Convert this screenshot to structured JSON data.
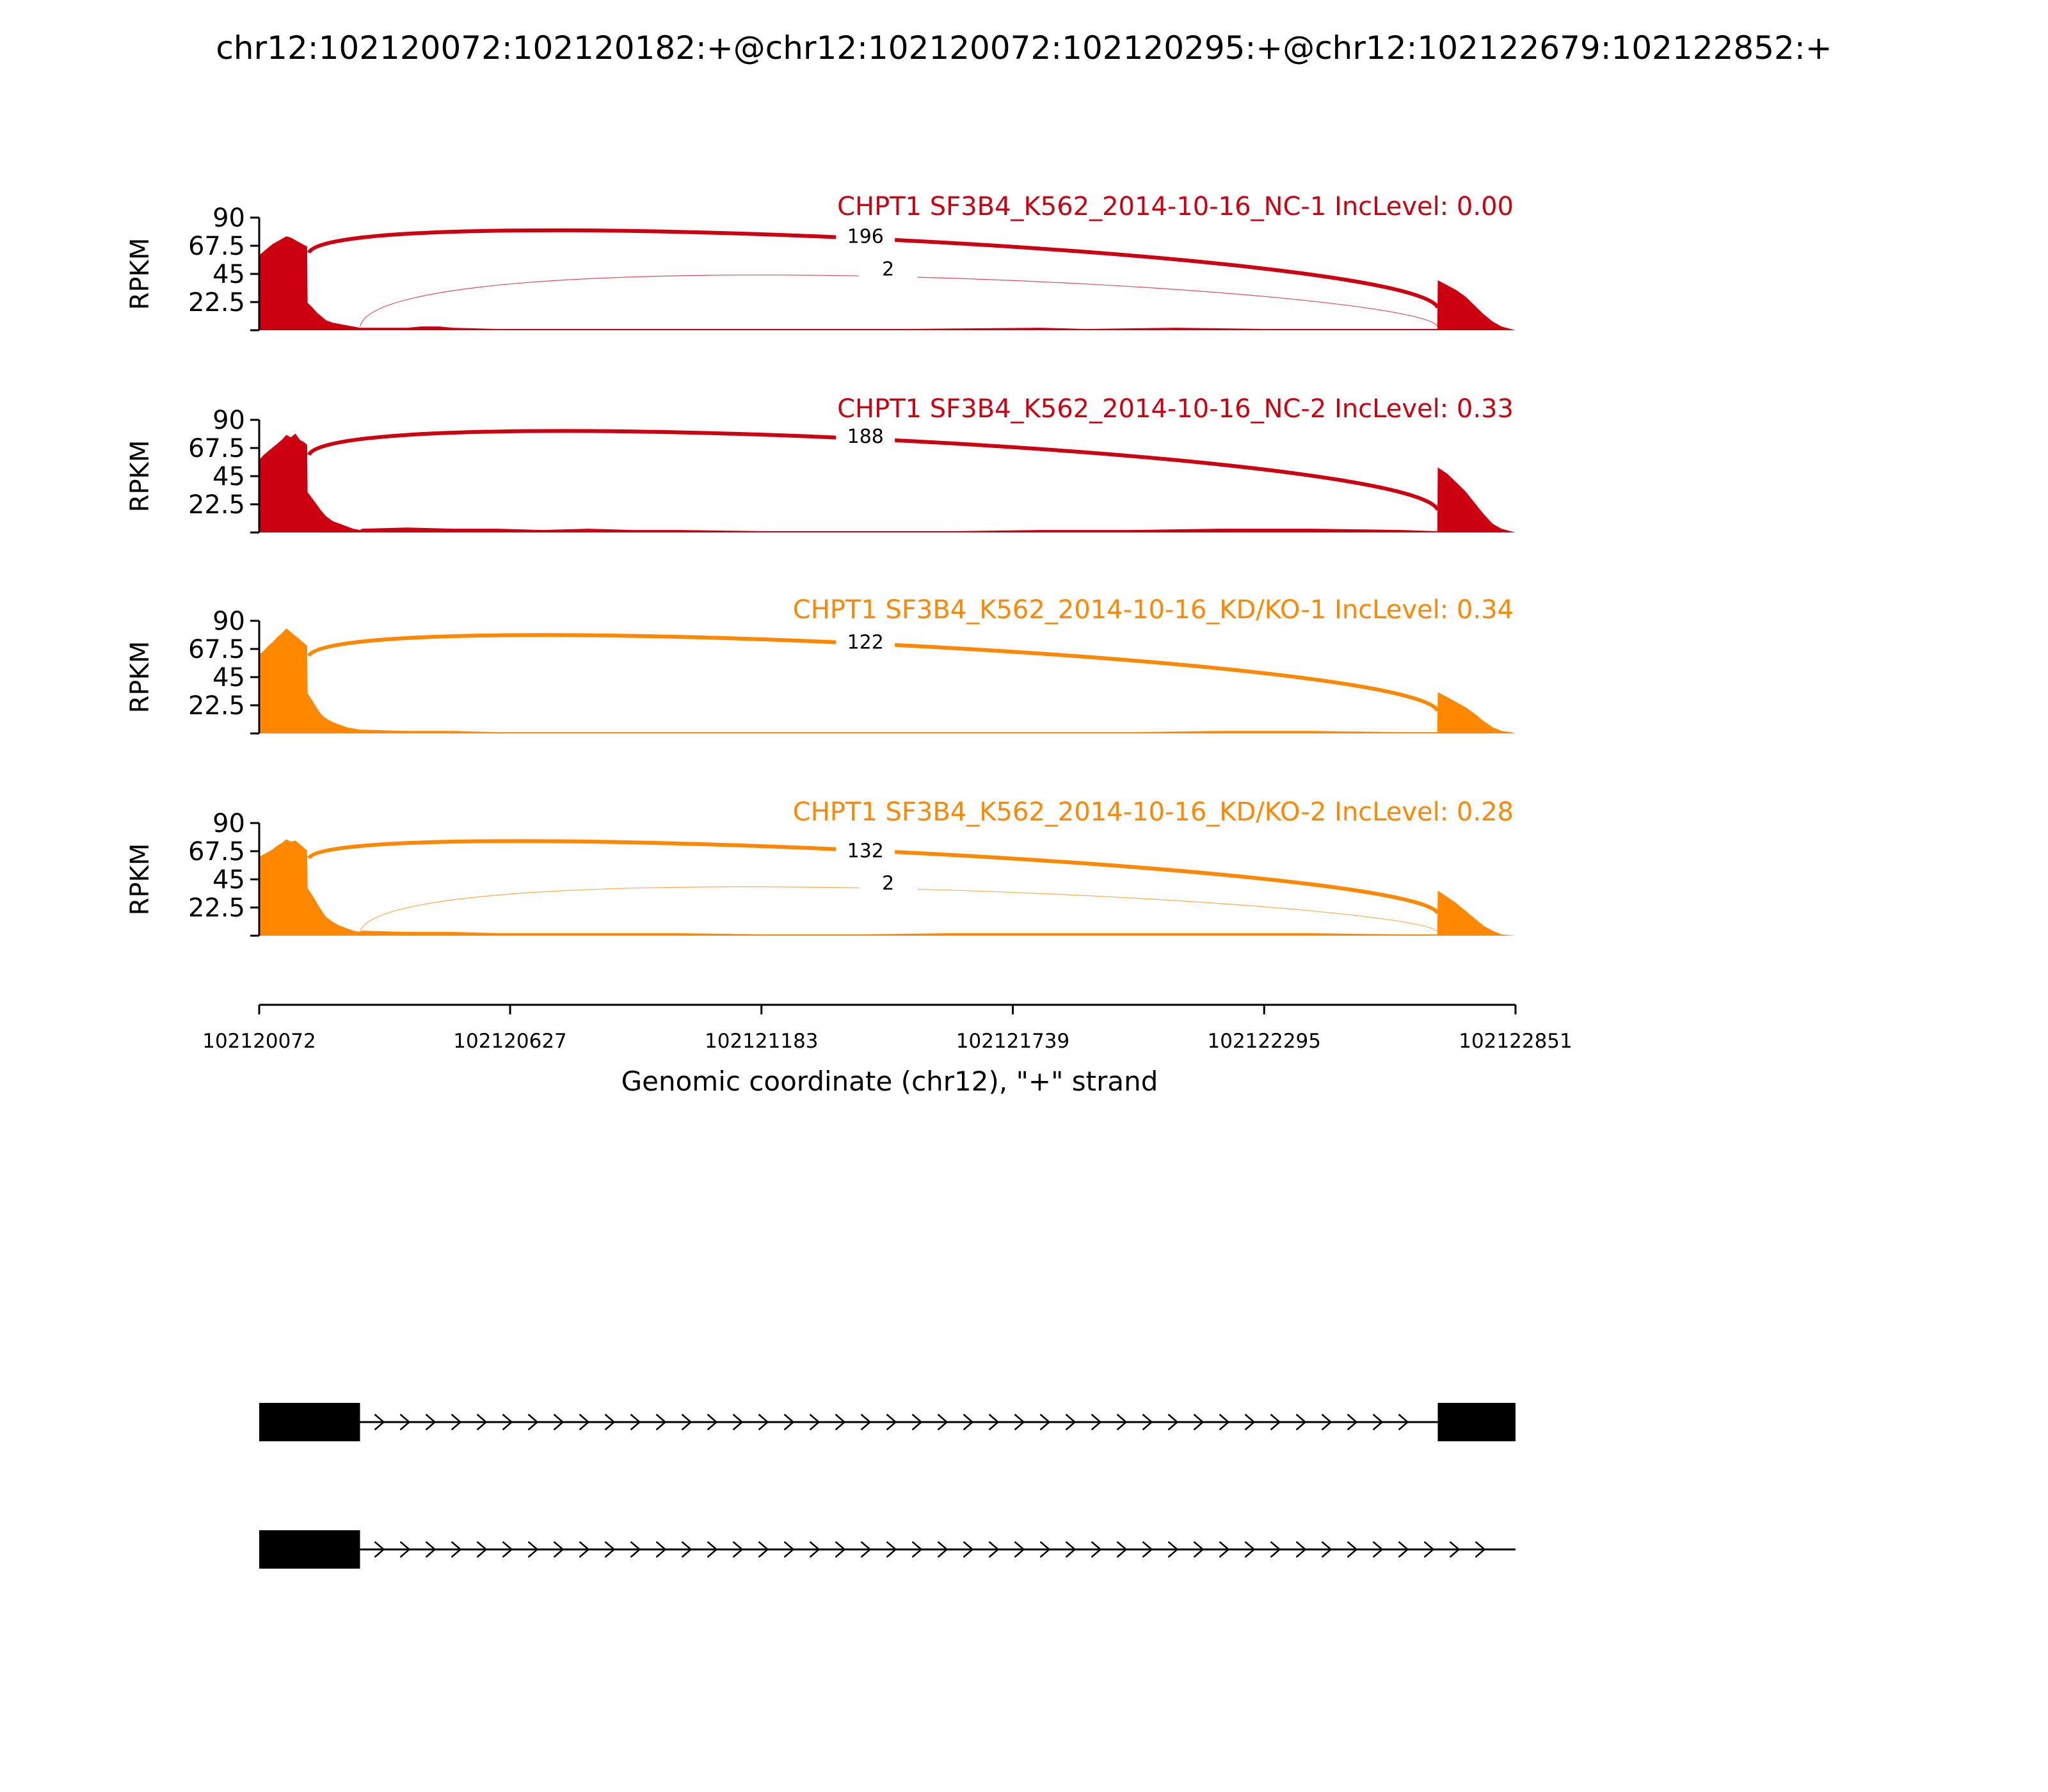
{
  "title": "chr12:102120072:102120182:+@chr12:102120072:102120295:+@chr12:102122679:102122852:+",
  "colors": {
    "nc": "#cc0011",
    "kd": "#ff8800",
    "structure": "#000000"
  },
  "chart_data": {
    "type": "area",
    "xlabel": "Genomic coordinate (chr12), \"+\" strand",
    "ylabel": "RPKM",
    "xlim": [
      102120072,
      102122851
    ],
    "ylim": [
      0,
      90
    ],
    "xticks": [
      "102120072",
      "102120627",
      "102121183",
      "102121739",
      "102122295",
      "102122851"
    ],
    "yticks": [
      "22.5",
      "45",
      "67.5",
      "90"
    ],
    "tracks": [
      {
        "name": "CHPT1 SF3B4_K562_2014-10-16_NC-1 IncLevel: 0.00",
        "group": "nc",
        "coverage": [
          [
            102120072,
            0
          ],
          [
            102120072,
            60
          ],
          [
            102120082,
            63
          ],
          [
            102120092,
            66
          ],
          [
            102120102,
            69
          ],
          [
            102120112,
            71
          ],
          [
            102120122,
            73
          ],
          [
            102120132,
            75
          ],
          [
            102120142,
            74
          ],
          [
            102120152,
            72
          ],
          [
            102120162,
            70
          ],
          [
            102120172,
            68
          ],
          [
            102120178,
            67
          ],
          [
            102120179,
            22
          ],
          [
            102120190,
            18
          ],
          [
            102120200,
            14
          ],
          [
            102120210,
            11
          ],
          [
            102120220,
            8
          ],
          [
            102120235,
            6
          ],
          [
            102120250,
            5
          ],
          [
            102120265,
            4
          ],
          [
            102120280,
            3
          ],
          [
            102120295,
            2
          ],
          [
            102120300,
            2
          ],
          [
            102120400,
            2
          ],
          [
            102120430,
            3
          ],
          [
            102120470,
            3
          ],
          [
            102120500,
            2
          ],
          [
            102120600,
            1
          ],
          [
            102120800,
            1
          ],
          [
            102121000,
            1
          ],
          [
            102121200,
            1
          ],
          [
            102121500,
            1
          ],
          [
            102121800,
            2
          ],
          [
            102121900,
            1
          ],
          [
            102122100,
            2
          ],
          [
            102122300,
            1
          ],
          [
            102122500,
            1
          ],
          [
            102122678,
            1
          ],
          [
            102122679,
            40
          ],
          [
            102122700,
            36
          ],
          [
            102122720,
            32
          ],
          [
            102122740,
            27
          ],
          [
            102122760,
            20
          ],
          [
            102122780,
            13
          ],
          [
            102122800,
            7
          ],
          [
            102122820,
            3
          ],
          [
            102122840,
            1
          ],
          [
            102122851,
            0
          ]
        ],
        "junctions": [
          {
            "from": 102120182,
            "to": 102122679,
            "count": "196",
            "height": 84,
            "weight": "major"
          },
          {
            "from": 102120295,
            "to": 102122679,
            "count": "2",
            "height": 56,
            "weight": "minor"
          }
        ]
      },
      {
        "name": "CHPT1 SF3B4_K562_2014-10-16_NC-2 IncLevel: 0.33",
        "group": "nc",
        "coverage": [
          [
            102120072,
            0
          ],
          [
            102120072,
            58
          ],
          [
            102120082,
            62
          ],
          [
            102120092,
            65
          ],
          [
            102120102,
            68
          ],
          [
            102120112,
            71
          ],
          [
            102120122,
            74
          ],
          [
            102120132,
            78
          ],
          [
            102120142,
            76
          ],
          [
            102120152,
            79
          ],
          [
            102120162,
            74
          ],
          [
            102120172,
            72
          ],
          [
            102120178,
            70
          ],
          [
            102120179,
            32
          ],
          [
            102120190,
            27
          ],
          [
            102120200,
            22
          ],
          [
            102120210,
            17
          ],
          [
            102120220,
            13
          ],
          [
            102120235,
            9
          ],
          [
            102120250,
            7
          ],
          [
            102120265,
            5
          ],
          [
            102120280,
            3
          ],
          [
            102120295,
            2
          ],
          [
            102120300,
            3
          ],
          [
            102120400,
            4
          ],
          [
            102120500,
            3
          ],
          [
            102120600,
            3
          ],
          [
            102120700,
            2
          ],
          [
            102120800,
            3
          ],
          [
            102120900,
            2
          ],
          [
            102121000,
            2
          ],
          [
            102121200,
            1
          ],
          [
            102121400,
            1
          ],
          [
            102121600,
            1
          ],
          [
            102121800,
            2
          ],
          [
            102122000,
            2
          ],
          [
            102122200,
            3
          ],
          [
            102122400,
            3
          ],
          [
            102122600,
            2
          ],
          [
            102122678,
            1
          ],
          [
            102122679,
            52
          ],
          [
            102122700,
            47
          ],
          [
            102122720,
            40
          ],
          [
            102122740,
            33
          ],
          [
            102122760,
            24
          ],
          [
            102122780,
            15
          ],
          [
            102122800,
            7
          ],
          [
            102122820,
            3
          ],
          [
            102122840,
            1
          ],
          [
            102122851,
            0
          ]
        ],
        "junctions": [
          {
            "from": 102120182,
            "to": 102122679,
            "count": "188",
            "height": 86,
            "weight": "major"
          }
        ]
      },
      {
        "name": "CHPT1 SF3B4_K562_2014-10-16_KD/KO-1 IncLevel: 0.34",
        "group": "kd",
        "coverage": [
          [
            102120072,
            0
          ],
          [
            102120072,
            63
          ],
          [
            102120082,
            66
          ],
          [
            102120092,
            70
          ],
          [
            102120102,
            73
          ],
          [
            102120112,
            77
          ],
          [
            102120122,
            80
          ],
          [
            102120132,
            84
          ],
          [
            102120142,
            81
          ],
          [
            102120152,
            78
          ],
          [
            102120162,
            75
          ],
          [
            102120172,
            72
          ],
          [
            102120178,
            70
          ],
          [
            102120179,
            32
          ],
          [
            102120190,
            26
          ],
          [
            102120200,
            20
          ],
          [
            102120210,
            15
          ],
          [
            102120220,
            12
          ],
          [
            102120235,
            9
          ],
          [
            102120250,
            7
          ],
          [
            102120265,
            5
          ],
          [
            102120280,
            4
          ],
          [
            102120295,
            3
          ],
          [
            102120300,
            3
          ],
          [
            102120400,
            2
          ],
          [
            102120500,
            2
          ],
          [
            102120600,
            1
          ],
          [
            102120800,
            1
          ],
          [
            102121000,
            1
          ],
          [
            102121200,
            1
          ],
          [
            102121500,
            1
          ],
          [
            102121800,
            1
          ],
          [
            102122000,
            1
          ],
          [
            102122200,
            2
          ],
          [
            102122400,
            2
          ],
          [
            102122600,
            1
          ],
          [
            102122678,
            1
          ],
          [
            102122679,
            33
          ],
          [
            102122700,
            29
          ],
          [
            102122720,
            25
          ],
          [
            102122740,
            21
          ],
          [
            102122760,
            16
          ],
          [
            102122780,
            10
          ],
          [
            102122800,
            5
          ],
          [
            102122820,
            2
          ],
          [
            102122840,
            1
          ],
          [
            102122851,
            0
          ]
        ],
        "junctions": [
          {
            "from": 102120182,
            "to": 102122679,
            "count": "122",
            "height": 82,
            "weight": "major"
          }
        ]
      },
      {
        "name": "CHPT1 SF3B4_K562_2014-10-16_KD/KO-2 IncLevel: 0.28",
        "group": "kd",
        "coverage": [
          [
            102120072,
            0
          ],
          [
            102120072,
            63
          ],
          [
            102120082,
            65
          ],
          [
            102120092,
            67
          ],
          [
            102120102,
            69
          ],
          [
            102120112,
            72
          ],
          [
            102120122,
            74
          ],
          [
            102120132,
            77
          ],
          [
            102120142,
            75
          ],
          [
            102120152,
            76
          ],
          [
            102120162,
            73
          ],
          [
            102120172,
            70
          ],
          [
            102120178,
            68
          ],
          [
            102120179,
            38
          ],
          [
            102120190,
            32
          ],
          [
            102120200,
            26
          ],
          [
            102120210,
            20
          ],
          [
            102120220,
            15
          ],
          [
            102120235,
            11
          ],
          [
            102120250,
            8
          ],
          [
            102120265,
            6
          ],
          [
            102120280,
            4
          ],
          [
            102120295,
            3
          ],
          [
            102120300,
            4
          ],
          [
            102120400,
            3
          ],
          [
            102120500,
            3
          ],
          [
            102120600,
            2
          ],
          [
            102120800,
            2
          ],
          [
            102121000,
            2
          ],
          [
            102121200,
            1
          ],
          [
            102121400,
            1
          ],
          [
            102121600,
            2
          ],
          [
            102121800,
            2
          ],
          [
            102122000,
            2
          ],
          [
            102122200,
            2
          ],
          [
            102122400,
            2
          ],
          [
            102122600,
            1
          ],
          [
            102122678,
            1
          ],
          [
            102122679,
            36
          ],
          [
            102122700,
            31
          ],
          [
            102122720,
            26
          ],
          [
            102122740,
            20
          ],
          [
            102122760,
            14
          ],
          [
            102122780,
            8
          ],
          [
            102122800,
            4
          ],
          [
            102122820,
            1
          ],
          [
            102122851,
            0
          ]
        ],
        "junctions": [
          {
            "from": 102120182,
            "to": 102122679,
            "count": "132",
            "height": 77,
            "weight": "major"
          },
          {
            "from": 102120295,
            "to": 102122679,
            "count": "2",
            "height": 49,
            "weight": "minor"
          }
        ]
      }
    ],
    "isoforms": [
      {
        "exons": [
          [
            102120072,
            102120295
          ],
          [
            102122679,
            102122851
          ]
        ],
        "intron": [
          102120295,
          102122679
        ]
      },
      {
        "exons": [
          [
            102120072,
            102120295
          ]
        ],
        "intron": [
          102120295,
          102122851
        ]
      }
    ]
  }
}
